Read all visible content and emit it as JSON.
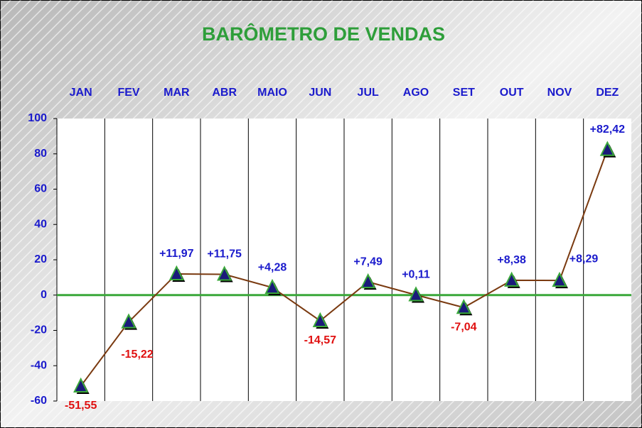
{
  "chart_data": {
    "type": "line",
    "title": "BARÔMETRO DE VENDAS",
    "categories": [
      "JAN",
      "FEV",
      "MAR",
      "ABR",
      "MAIO",
      "JUN",
      "JUL",
      "AGO",
      "SET",
      "OUT",
      "NOV",
      "DEZ"
    ],
    "series": [
      {
        "color": "#7a3a10",
        "values": [
          -51.55,
          -15.22,
          11.97,
          11.75,
          4.28,
          -14.57,
          7.49,
          0.11,
          -7.04,
          8.38,
          8.29,
          82.42
        ],
        "value_labels": [
          "-51,55",
          "-15,22",
          "+11,97",
          "+11,75",
          "+4,28",
          "-14,57",
          "+7,49",
          "+0,11",
          "-7,04",
          "+8,38",
          "+8,29",
          "+82,42"
        ]
      }
    ],
    "positive_label_color": "#1a1acc",
    "negative_label_color": "#e01010",
    "ylim": [
      -60,
      100
    ],
    "yticks": [
      -60,
      -40,
      -20,
      0,
      20,
      40,
      60,
      80,
      100
    ]
  }
}
